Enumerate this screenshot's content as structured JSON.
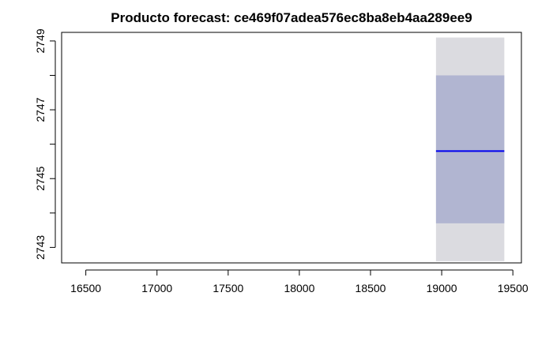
{
  "chart_data": {
    "type": "area",
    "title": "Producto forecast:  ce469f07adea576ec8ba8eb4aa289ee9",
    "xlabel": "",
    "ylabel": "",
    "xlim": [
      16330,
      19560
    ],
    "ylim": [
      2742.55,
      2749.25
    ],
    "x_ticks": [
      16500,
      17000,
      17500,
      18000,
      18500,
      19000,
      19500
    ],
    "y_ticks": [
      2743,
      2744,
      2745,
      2746,
      2747,
      2748,
      2749
    ],
    "y_tick_labels": [
      "2743",
      "",
      "2745",
      "",
      "2747",
      "",
      "2749"
    ],
    "grid": false,
    "forecast": {
      "x_start": 18960,
      "x_end": 19440,
      "mean": 2745.8,
      "lower_80": 2743.7,
      "upper_80": 2748.0,
      "lower_95": 2742.6,
      "upper_95": 2749.1
    },
    "colors": {
      "band_95": "#dbdbe0",
      "band_80": "#b1b5d1",
      "mean_line": "#0000ee",
      "axis": "#000000"
    }
  }
}
